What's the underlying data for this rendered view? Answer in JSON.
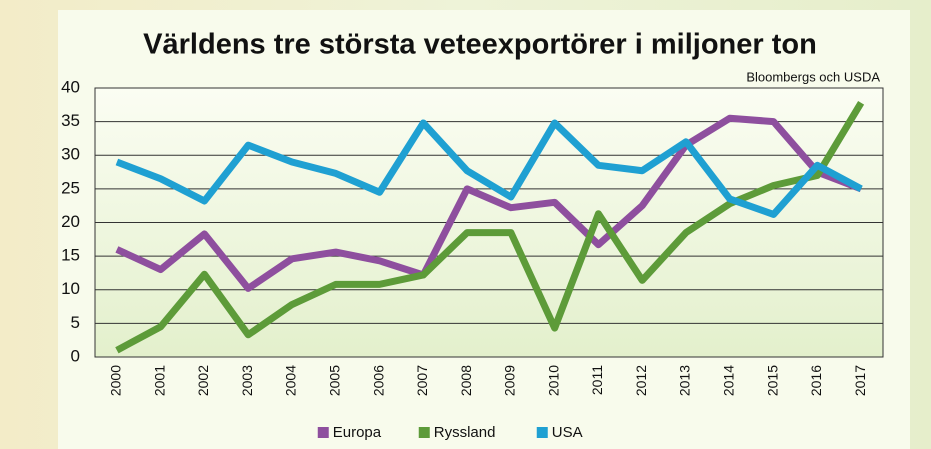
{
  "chart_data": {
    "type": "line",
    "title": "Världens tre största veteexportörer i miljoner ton",
    "subtitle": "Bloombergs och USDA",
    "categories": [
      "2000",
      "2001",
      "2002",
      "2003",
      "2004",
      "2005",
      "2006",
      "2007",
      "2008",
      "2009",
      "2010",
      "2011",
      "2012",
      "2013",
      "2014",
      "2015",
      "2016",
      "2017"
    ],
    "series": [
      {
        "name": "Europa",
        "color": "#8e4f9e",
        "values": [
          16,
          13,
          18.3,
          10.2,
          14.6,
          15.6,
          14.3,
          12.2,
          25,
          22.2,
          23,
          16.7,
          22.5,
          31.5,
          35.5,
          35,
          27.5,
          25
        ]
      },
      {
        "name": "Ryssland",
        "color": "#5d9b39",
        "values": [
          1,
          4.5,
          12.3,
          3.3,
          7.8,
          10.8,
          10.8,
          12.2,
          18.5,
          18.5,
          4.3,
          21.3,
          11.4,
          18.5,
          22.8,
          25.5,
          27,
          37.8
        ]
      },
      {
        "name": "USA",
        "color": "#1fa0d2",
        "values": [
          29,
          26.5,
          23.2,
          31.5,
          29,
          27.3,
          24.5,
          34.8,
          27.7,
          23.8,
          34.8,
          28.5,
          27.7,
          32,
          23.5,
          21.2,
          28.5,
          25
        ]
      }
    ],
    "ylim": [
      0,
      40
    ],
    "yticks": [
      0,
      5,
      10,
      15,
      20,
      25,
      30,
      35,
      40
    ],
    "grid": true,
    "legend": "bottom"
  }
}
